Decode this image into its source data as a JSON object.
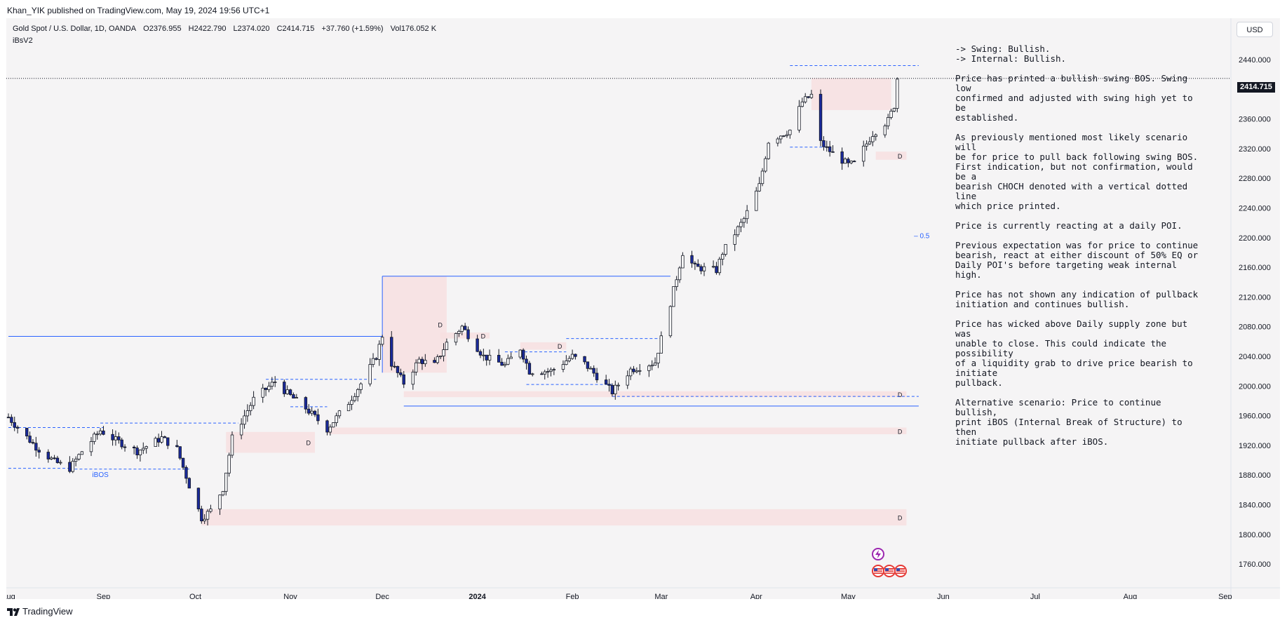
{
  "publisher_line": "Khan_YIK published on TradingView.com, May 19, 2024 19:56 UTC+1",
  "symbol": {
    "name": "Gold Spot / U.S. Dollar, 1D, OANDA",
    "open": "O2376.955",
    "high": "H2422.790",
    "low": "L2374.020",
    "close": "C2414.715",
    "change": "+37.760 (+1.59%)",
    "volume": "Vol176.052 K"
  },
  "indicator": "iBsV2",
  "currency_button": "USD",
  "last_price_tag": "2414.715",
  "notes": [
    "-> Swing: Bullish.\n-> Internal: Bullish.",
    "Price has printed a bullish swing BOS.  Swing low\nconfirmed and adjusted with swing high yet to be\nestablished.",
    "As previously mentioned most likely scenario will\nbe for price to pull back following swing BOS.\nFirst indication, but not confirmation, would be a\nbearish CHOCH denoted with a vertical dotted line\nwhich price printed.",
    "Price is currently reacting at a daily POI.",
    "Previous expectation was for price to continue\nbearish, react at either discount of 50% EQ or\nDaily POI's before targeting weak internal high.",
    "Price has not shown any indication of pullback\ninitiation and continues bullish.",
    "Price has wicked above Daily supply zone but was\nunable to close.  This could indicate the possibility\nof a liquidity grab to drive price bearish to initiate\npullback.",
    "Alternative scenario:  Price to continue bullish,\nprint iBOS (Internal Break of Structure) to then\ninitiate pullback after iBOS."
  ],
  "footer_brand": "TradingView",
  "colors": {
    "up_candle": "#ffffff",
    "down_candle": "#1a2a9c",
    "zone": "#f7dfe0",
    "structure_line": "#2962ff"
  },
  "icons": [
    "lightning-icon",
    "us-flag-icon"
  ],
  "chart_data": {
    "type": "candlestick",
    "title": "Gold Spot / U.S. Dollar, 1D, OANDA",
    "ylim": [
      1740,
      2460
    ],
    "y_ticks": [
      2440,
      2400,
      2360,
      2320,
      2280,
      2240,
      2200,
      2160,
      2120,
      2080,
      2040,
      2000,
      1960,
      1920,
      1880,
      1840,
      1800,
      1760
    ],
    "y_tick_labels": [
      "2440.000",
      "2400.000",
      "2360.000",
      "2320.000",
      "2280.000",
      "2240.000",
      "2200.000",
      "2160.000",
      "2120.000",
      "2080.000",
      "2040.000",
      "2000.000",
      "1960.000",
      "1920.000",
      "1880.000",
      "1840.000",
      "1800.000",
      "1760.000"
    ],
    "x_labels": [
      {
        "date": "2023-08-01",
        "label": "Aug"
      },
      {
        "date": "2023-09-01",
        "label": "Sep"
      },
      {
        "date": "2023-10-01",
        "label": "Oct"
      },
      {
        "date": "2023-11-01",
        "label": "Nov"
      },
      {
        "date": "2023-12-01",
        "label": "Dec"
      },
      {
        "date": "2024-01-01",
        "label": "2024"
      },
      {
        "date": "2024-02-01",
        "label": "Feb"
      },
      {
        "date": "2024-03-01",
        "label": "Mar"
      },
      {
        "date": "2024-04-01",
        "label": "Apr"
      },
      {
        "date": "2024-05-01",
        "label": "May"
      },
      {
        "date": "2024-06-01",
        "label": "Jun"
      },
      {
        "date": "2024-07-01",
        "label": "Jul"
      },
      {
        "date": "2024-08-01",
        "label": "Aug"
      },
      {
        "date": "2024-09-01",
        "label": "Sep"
      }
    ],
    "x_range": [
      "2023-08-01",
      "2024-09-30"
    ],
    "path_anchors": [
      [
        "2023-08-01",
        1958
      ],
      [
        "2023-08-04",
        1944
      ],
      [
        "2023-08-10",
        1918
      ],
      [
        "2023-08-16",
        1898
      ],
      [
        "2023-08-21",
        1889
      ],
      [
        "2023-08-25",
        1912
      ],
      [
        "2023-08-31",
        1940
      ],
      [
        "2023-09-05",
        1927
      ],
      [
        "2023-09-12",
        1912
      ],
      [
        "2023-09-20",
        1930
      ],
      [
        "2023-09-25",
        1915
      ],
      [
        "2023-09-29",
        1866
      ],
      [
        "2023-10-03",
        1822
      ],
      [
        "2023-10-06",
        1832
      ],
      [
        "2023-10-10",
        1862
      ],
      [
        "2023-10-13",
        1930
      ],
      [
        "2023-10-20",
        1982
      ],
      [
        "2023-10-27",
        2006
      ],
      [
        "2023-10-31",
        1990
      ],
      [
        "2023-11-06",
        1970
      ],
      [
        "2023-11-13",
        1942
      ],
      [
        "2023-11-20",
        1978
      ],
      [
        "2023-11-24",
        2003
      ],
      [
        "2023-11-29",
        2040
      ],
      [
        "2023-12-01",
        2068
      ],
      [
        "2023-12-04",
        2030
      ],
      [
        "2023-12-08",
        2004
      ],
      [
        "2023-12-13",
        2035
      ],
      [
        "2023-12-18",
        2028
      ],
      [
        "2023-12-22",
        2058
      ],
      [
        "2023-12-27",
        2080
      ],
      [
        "2024-01-03",
        2040
      ],
      [
        "2024-01-10",
        2028
      ],
      [
        "2024-01-15",
        2051
      ],
      [
        "2024-01-18",
        2020
      ],
      [
        "2024-01-25",
        2020
      ],
      [
        "2024-02-01",
        2040
      ],
      [
        "2024-02-05",
        2030
      ],
      [
        "2024-02-14",
        1992
      ],
      [
        "2024-02-20",
        2022
      ],
      [
        "2024-02-28",
        2032
      ],
      [
        "2024-03-04",
        2112
      ],
      [
        "2024-03-08",
        2180
      ],
      [
        "2024-03-12",
        2160
      ],
      [
        "2024-03-19",
        2156
      ],
      [
        "2024-03-21",
        2180
      ],
      [
        "2024-03-28",
        2225
      ],
      [
        "2024-04-02",
        2270
      ],
      [
        "2024-04-05",
        2330
      ],
      [
        "2024-04-12",
        2345
      ],
      [
        "2024-04-16",
        2383
      ],
      [
        "2024-04-19",
        2392
      ],
      [
        "2024-04-22",
        2328
      ],
      [
        "2024-04-24",
        2320
      ],
      [
        "2024-05-01",
        2298
      ],
      [
        "2024-05-03",
        2300
      ],
      [
        "2024-05-09",
        2340
      ],
      [
        "2024-05-14",
        2358
      ],
      [
        "2024-05-16",
        2378
      ],
      [
        "2024-05-17",
        2414.715
      ]
    ],
    "annotations": [
      {
        "type": "label",
        "text": "iBOS",
        "date": "2023-08-31",
        "price": 1880
      },
      {
        "type": "label",
        "text": "0.5",
        "date": "2024-05-25",
        "price": 2202
      },
      {
        "type": "zone",
        "text": "D",
        "from": "2023-10-11",
        "to": "2023-11-09",
        "low": 1910,
        "high": 1938
      },
      {
        "type": "zone",
        "text": "D",
        "from": "2023-12-01",
        "to": "2023-12-22",
        "low": 2018,
        "high": 2148
      },
      {
        "type": "zone",
        "text": "D",
        "from": "2023-10-03",
        "to": "2024-05-20",
        "low": 1812,
        "high": 1834
      },
      {
        "type": "zone",
        "text": "D",
        "from": "2023-11-13",
        "to": "2024-05-20",
        "low": 1935,
        "high": 1944
      },
      {
        "type": "zone",
        "text": "D",
        "from": "2023-12-08",
        "to": "2024-05-20",
        "low": 1985,
        "high": 1993
      },
      {
        "type": "zone",
        "text": "D",
        "from": "2024-05-10",
        "to": "2024-05-20",
        "low": 2305,
        "high": 2316
      },
      {
        "type": "zone",
        "text": "",
        "from": "2024-04-19",
        "to": "2024-05-15",
        "low": 2372,
        "high": 2415
      },
      {
        "type": "zone",
        "text": "D",
        "from": "2024-01-15",
        "to": "2024-01-30",
        "low": 2049,
        "high": 2059
      },
      {
        "type": "zone",
        "text": "D",
        "from": "2023-12-20",
        "to": "2024-01-05",
        "low": 2064,
        "high": 2072
      }
    ]
  }
}
